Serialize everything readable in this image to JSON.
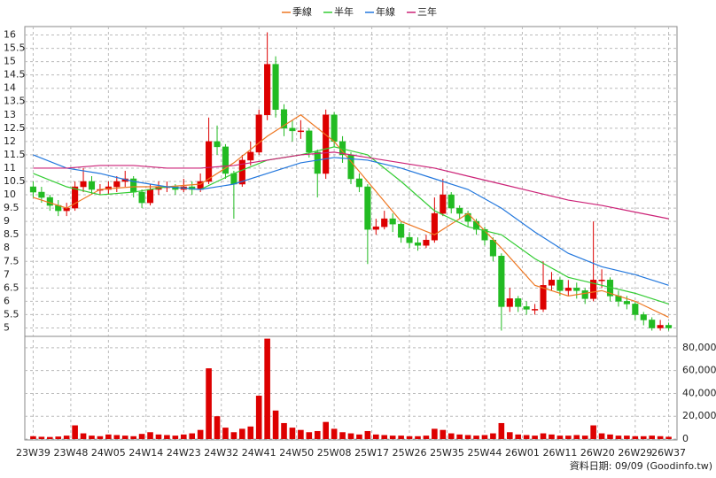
{
  "chart_data": {
    "type": "candlestick",
    "legend": {
      "position": "top"
    },
    "footnote": "資料日期: 09/09  (Goodinfo.tw)",
    "grid": true,
    "up_color": "#dd0000",
    "down_color": "#22bb22",
    "volume_color": "#dd0000",
    "xlim": [
      -2,
      154
    ],
    "xticks": [
      {
        "value": 0,
        "label": "23W39"
      },
      {
        "value": 9,
        "label": "23W48"
      },
      {
        "value": 18,
        "label": "24W05"
      },
      {
        "value": 27,
        "label": "24W14"
      },
      {
        "value": 36,
        "label": "24W23"
      },
      {
        "value": 45,
        "label": "24W32"
      },
      {
        "value": 54,
        "label": "24W41"
      },
      {
        "value": 63,
        "label": "24W50"
      },
      {
        "value": 72,
        "label": "25W08"
      },
      {
        "value": 81,
        "label": "25W17"
      },
      {
        "value": 90,
        "label": "25W26"
      },
      {
        "value": 99,
        "label": "25W35"
      },
      {
        "value": 108,
        "label": "25W44"
      },
      {
        "value": 117,
        "label": "26W01"
      },
      {
        "value": 126,
        "label": "26W11"
      },
      {
        "value": 135,
        "label": "26W20"
      },
      {
        "value": 144,
        "label": "26W29"
      },
      {
        "value": 152,
        "label": "26W37"
      }
    ],
    "ylim": [
      4.75,
      16.25
    ],
    "yticks": [
      5,
      5.5,
      6,
      6.5,
      7,
      7.5,
      8,
      8.5,
      9,
      9.5,
      10,
      10.5,
      11,
      11.5,
      12,
      12.5,
      13,
      13.5,
      14,
      14.5,
      15,
      15.5,
      16
    ],
    "y2lim": [
      0,
      90000
    ],
    "y2ticks": [
      0,
      {
        "value": 20000,
        "label": "20,000"
      },
      {
        "value": 40000,
        "label": "40,000"
      },
      {
        "value": 60000,
        "label": "60,000"
      },
      {
        "value": 80000,
        "label": "80,000"
      }
    ],
    "x": [
      0,
      2,
      4,
      6,
      8,
      10,
      12,
      14,
      16,
      18,
      20,
      22,
      24,
      26,
      28,
      30,
      32,
      34,
      36,
      38,
      40,
      42,
      44,
      46,
      48,
      50,
      52,
      54,
      56,
      58,
      60,
      62,
      64,
      66,
      68,
      70,
      72,
      74,
      76,
      78,
      80,
      82,
      84,
      86,
      88,
      90,
      92,
      94,
      96,
      98,
      100,
      102,
      104,
      106,
      108,
      110,
      112,
      114,
      116,
      118,
      120,
      122,
      124,
      126,
      128,
      130,
      132,
      134,
      136,
      138,
      140,
      142,
      144,
      146,
      148,
      150,
      152
    ],
    "open": [
      10.3,
      10.1,
      9.9,
      9.6,
      9.4,
      9.5,
      10.3,
      10.5,
      10.2,
      10.2,
      10.3,
      10.5,
      10.6,
      10.1,
      9.7,
      10.2,
      10.3,
      10.3,
      10.2,
      10.3,
      10.2,
      10.5,
      12.0,
      11.8,
      10.8,
      10.4,
      11.3,
      11.6,
      13.0,
      14.9,
      13.2,
      12.5,
      12.4,
      12.4,
      11.6,
      10.8,
      13.0,
      12.0,
      11.5,
      10.6,
      10.3,
      8.7,
      8.8,
      9.1,
      8.9,
      8.4,
      8.2,
      8.1,
      8.3,
      9.3,
      10.0,
      9.5,
      9.3,
      9.0,
      8.7,
      8.3,
      7.7,
      5.8,
      6.1,
      5.8,
      5.7,
      5.7,
      6.6,
      6.8,
      6.4,
      6.5,
      6.4,
      6.1,
      6.8,
      6.8,
      6.2,
      6.0,
      5.9,
      5.5,
      5.3,
      5.0,
      5.1
    ],
    "high": [
      10.5,
      10.3,
      10.0,
      9.8,
      9.7,
      10.5,
      11.0,
      10.7,
      10.4,
      10.5,
      10.7,
      10.9,
      10.7,
      10.2,
      10.4,
      10.5,
      10.5,
      10.4,
      10.6,
      10.5,
      10.8,
      12.9,
      12.6,
      11.9,
      10.9,
      11.5,
      12.0,
      13.2,
      16.1,
      15.2,
      13.4,
      12.8,
      12.8,
      12.5,
      11.7,
      13.2,
      13.1,
      12.2,
      11.6,
      10.8,
      10.4,
      9.1,
      9.4,
      9.3,
      9.0,
      8.6,
      8.4,
      8.5,
      9.9,
      10.6,
      10.1,
      9.6,
      9.4,
      9.1,
      8.8,
      8.4,
      7.8,
      6.5,
      6.2,
      6.0,
      5.9,
      7.5,
      7.1,
      6.9,
      6.8,
      6.7,
      6.5,
      9.0,
      7.2,
      6.9,
      6.4,
      6.2,
      6.0,
      5.6,
      5.4,
      5.3,
      5.2
    ],
    "low": [
      9.9,
      9.7,
      9.4,
      9.2,
      9.2,
      9.4,
      10.1,
      10.0,
      10.0,
      10.0,
      10.1,
      10.3,
      9.9,
      9.5,
      9.6,
      10.0,
      10.1,
      10.0,
      10.1,
      10.0,
      10.1,
      10.4,
      11.5,
      10.6,
      9.1,
      10.3,
      11.1,
      11.5,
      12.8,
      12.9,
      12.2,
      12.0,
      12.1,
      11.4,
      9.9,
      10.6,
      11.8,
      11.2,
      10.4,
      10.1,
      7.4,
      8.5,
      8.7,
      8.6,
      8.2,
      8.0,
      7.9,
      8.0,
      8.2,
      9.2,
      9.3,
      9.1,
      8.8,
      8.5,
      8.1,
      7.5,
      4.9,
      5.6,
      5.6,
      5.5,
      5.5,
      5.6,
      6.4,
      6.2,
      6.2,
      6.1,
      5.9,
      6.0,
      6.5,
      6.0,
      5.8,
      5.7,
      5.3,
      5.1,
      4.9,
      4.9,
      4.9
    ],
    "close": [
      10.1,
      9.9,
      9.6,
      9.4,
      9.5,
      10.3,
      10.5,
      10.2,
      10.2,
      10.3,
      10.5,
      10.6,
      10.1,
      9.7,
      10.2,
      10.3,
      10.3,
      10.2,
      10.3,
      10.2,
      10.5,
      12.0,
      11.8,
      10.8,
      10.4,
      11.3,
      11.6,
      13.0,
      14.9,
      13.2,
      12.5,
      12.4,
      12.4,
      11.6,
      10.8,
      13.0,
      12.0,
      11.5,
      10.6,
      10.3,
      8.7,
      8.8,
      9.1,
      8.9,
      8.4,
      8.2,
      8.1,
      8.3,
      9.3,
      10.0,
      9.5,
      9.3,
      9.0,
      8.7,
      8.3,
      7.7,
      5.8,
      6.1,
      5.8,
      5.7,
      5.7,
      6.6,
      6.8,
      6.4,
      6.5,
      6.4,
      6.1,
      6.8,
      6.8,
      6.2,
      6.0,
      5.9,
      5.5,
      5.3,
      5.0,
      5.1,
      5.0
    ],
    "volume": [
      2500,
      2000,
      1800,
      2200,
      3000,
      12000,
      5000,
      3000,
      2500,
      4000,
      3500,
      3000,
      2500,
      4500,
      6000,
      4000,
      3500,
      3000,
      4000,
      5000,
      8000,
      62000,
      20000,
      10000,
      6000,
      9000,
      11000,
      38000,
      88000,
      25000,
      14000,
      10000,
      8000,
      6000,
      7000,
      15000,
      9000,
      6000,
      5000,
      4000,
      7000,
      4000,
      3500,
      3000,
      3000,
      2500,
      2500,
      3000,
      9000,
      8000,
      5000,
      4000,
      3500,
      3000,
      3500,
      5000,
      14000,
      6000,
      4000,
      3500,
      3000,
      5000,
      4000,
      3000,
      3000,
      3500,
      3000,
      12000,
      5000,
      4000,
      3000,
      3000,
      2500,
      2500,
      3000,
      2500,
      2000
    ],
    "lines": [
      {
        "name": "季線",
        "color": "#ee7722",
        "x": [
          0,
          8,
          16,
          24,
          32,
          40,
          48,
          56,
          64,
          72,
          80,
          88,
          96,
          104,
          112,
          120,
          128,
          136,
          144,
          152
        ],
        "values": [
          9.9,
          9.5,
          10.2,
          10.3,
          10.3,
          10.4,
          11.2,
          12.2,
          13.0,
          12.0,
          10.5,
          9.0,
          8.5,
          9.3,
          8.0,
          6.6,
          6.2,
          6.4,
          6.0,
          5.4
        ]
      },
      {
        "name": "半年",
        "color": "#33cc33",
        "x": [
          0,
          8,
          16,
          24,
          32,
          40,
          48,
          56,
          64,
          72,
          80,
          88,
          96,
          104,
          112,
          120,
          128,
          136,
          144,
          152
        ],
        "values": [
          10.8,
          10.3,
          10.0,
          10.1,
          10.3,
          10.2,
          10.8,
          11.3,
          11.5,
          11.8,
          11.5,
          10.5,
          9.4,
          8.8,
          8.5,
          7.6,
          6.9,
          6.6,
          6.3,
          5.9
        ]
      },
      {
        "name": "年線",
        "color": "#2277dd",
        "x": [
          0,
          8,
          16,
          24,
          32,
          40,
          48,
          56,
          64,
          72,
          80,
          88,
          96,
          104,
          112,
          120,
          128,
          136,
          144,
          152
        ],
        "values": [
          11.5,
          11.0,
          10.8,
          10.5,
          10.3,
          10.2,
          10.4,
          10.8,
          11.2,
          11.4,
          11.3,
          11.0,
          10.6,
          10.2,
          9.5,
          8.6,
          7.8,
          7.3,
          7.0,
          6.6
        ]
      },
      {
        "name": "三年",
        "color": "#cc2277",
        "x": [
          0,
          8,
          16,
          24,
          32,
          40,
          48,
          56,
          64,
          72,
          80,
          88,
          96,
          104,
          112,
          120,
          128,
          136,
          144,
          152
        ],
        "values": [
          11.0,
          11.0,
          11.1,
          11.1,
          11.0,
          11.0,
          11.1,
          11.3,
          11.5,
          11.6,
          11.4,
          11.2,
          11.0,
          10.7,
          10.4,
          10.1,
          9.8,
          9.6,
          9.35,
          9.1
        ]
      }
    ]
  }
}
